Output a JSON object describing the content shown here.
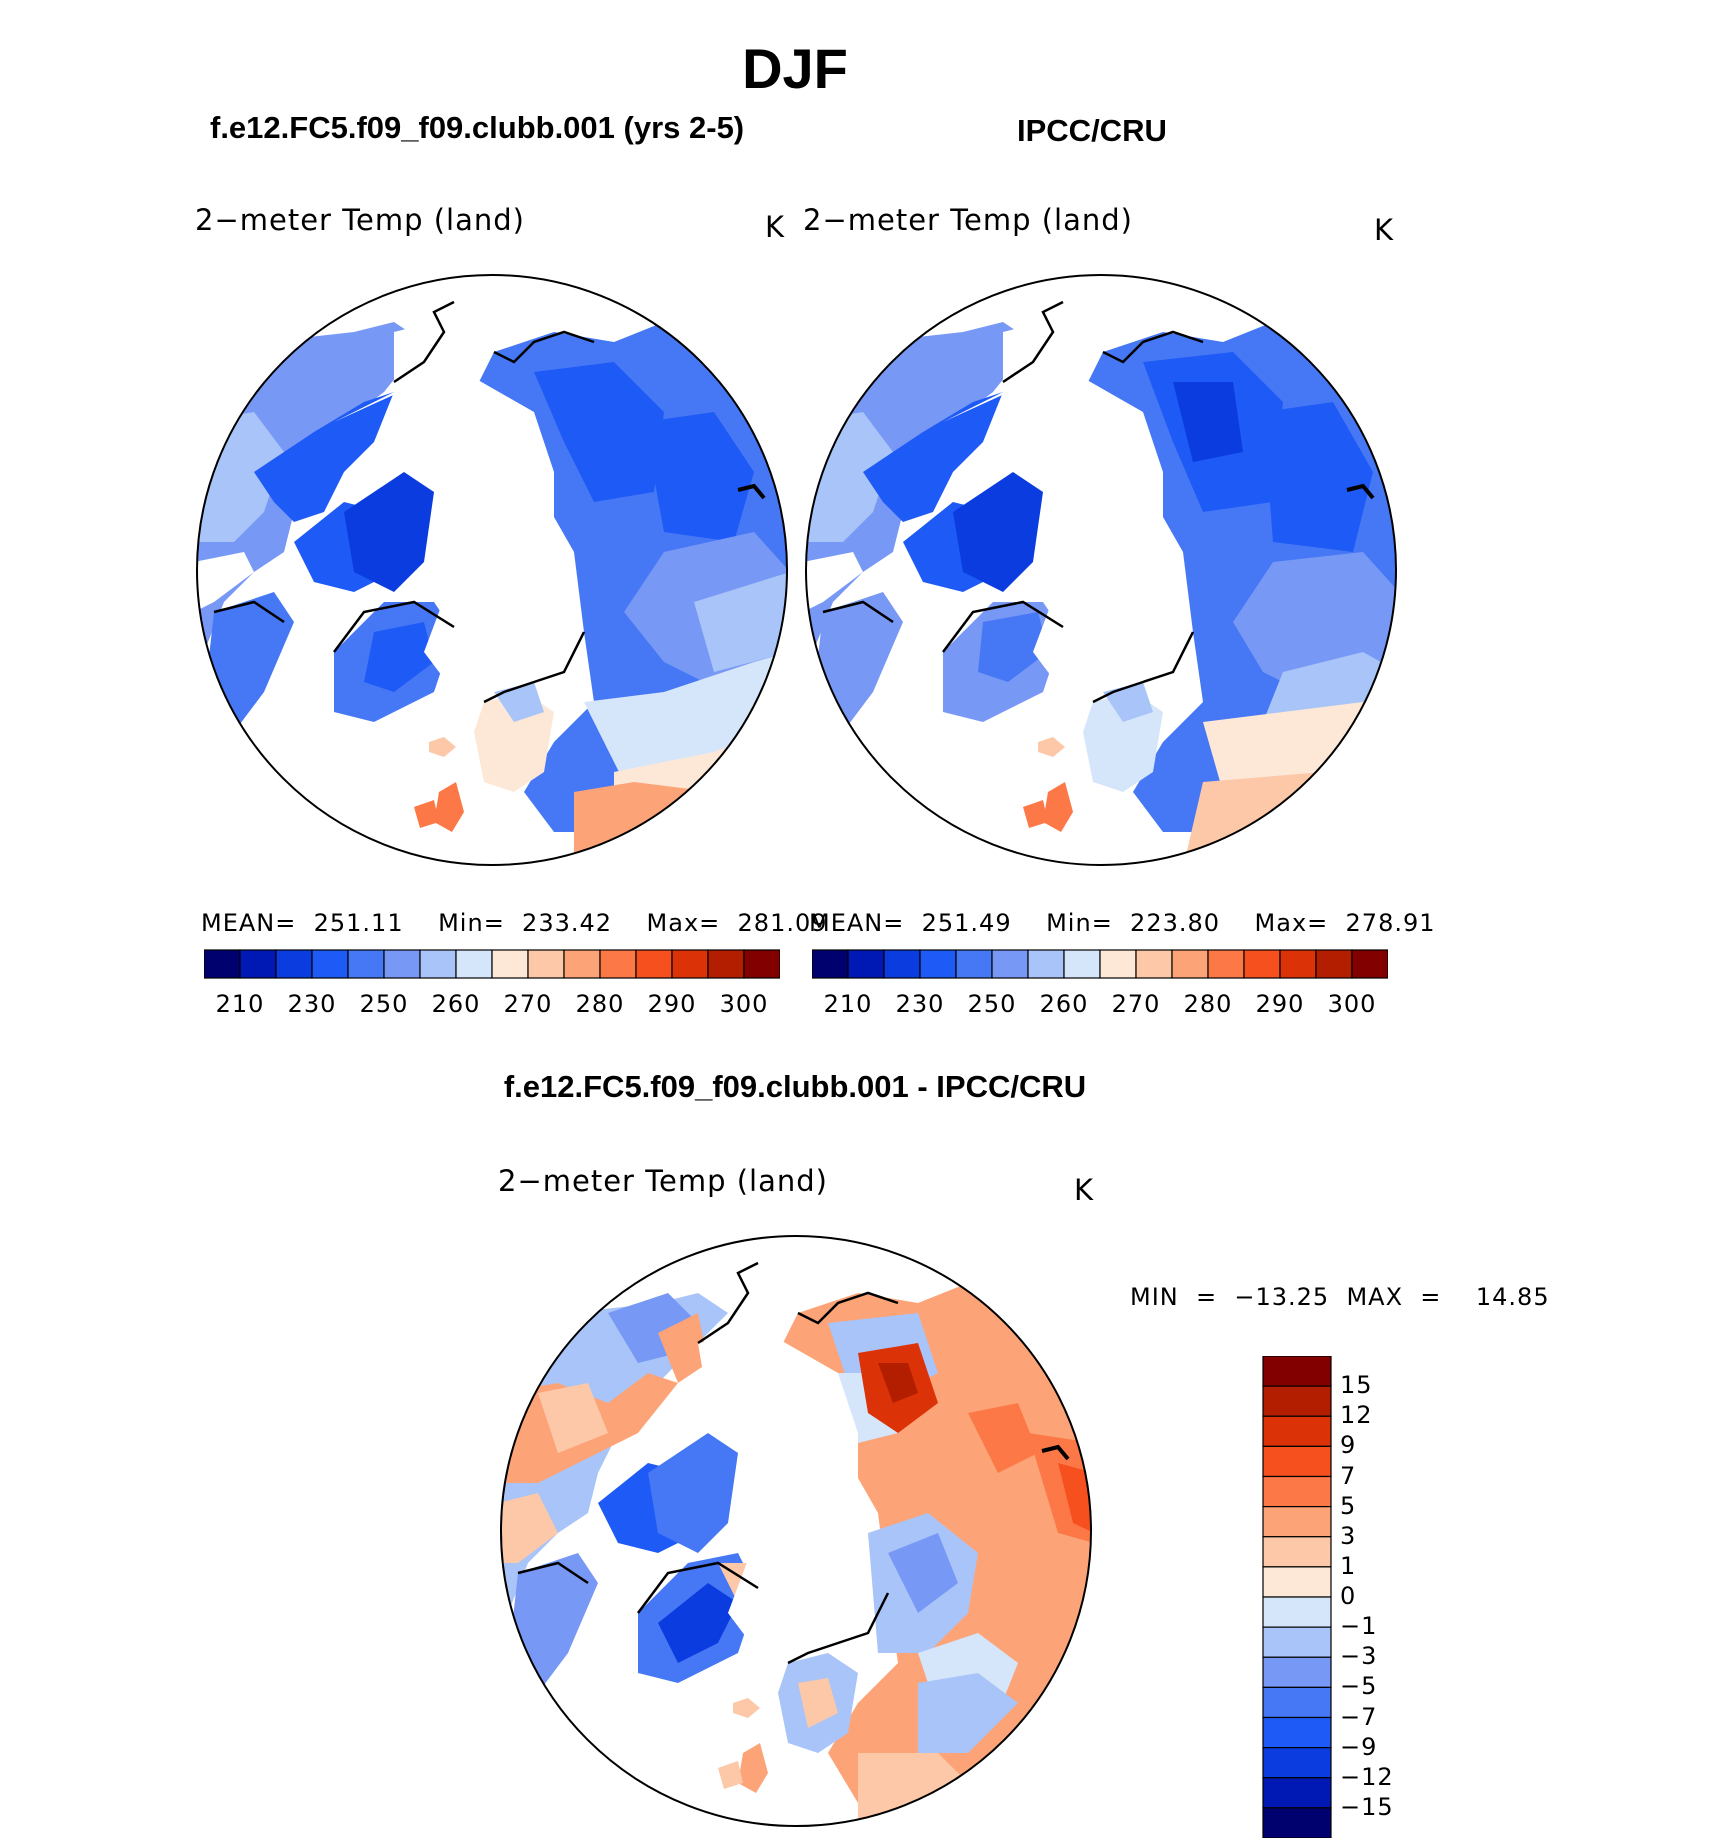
{
  "title": "DJF",
  "left_case": "f.e12.FC5.f09_f09.clubb.001 (yrs 2-5)",
  "right_case": "IPCC/CRU",
  "diff_title": "f.e12.FC5.f09_f09.clubb.001 - IPCC/CRU",
  "panels": {
    "model": {
      "variable": "2−meter Temp (land)",
      "units": "K",
      "stats": "MEAN=  251.11    Min=  233.42    Max=  281.09"
    },
    "obs": {
      "variable": "2−meter Temp (land)",
      "units": "K",
      "stats": "MEAN=  251.49    Min=  223.80    Max=  278.91"
    },
    "diff": {
      "variable": "2−meter Temp (land)",
      "units": "K",
      "stats": "MIN  =  −13.25  MAX  =    14.85"
    }
  },
  "colorbar_abs": {
    "colors": [
      "#00006e",
      "#0018b4",
      "#0a3ce0",
      "#1e5af5",
      "#4678f5",
      "#7898f5",
      "#a8c4f8",
      "#d6e6fa",
      "#fde8d8",
      "#fcc8a8",
      "#fca478",
      "#fc7846",
      "#f5501e",
      "#dc3208",
      "#b41e00",
      "#820000"
    ],
    "labels": [
      "210",
      "230",
      "250",
      "260",
      "270",
      "280",
      "290",
      "300"
    ]
  },
  "colorbar_diff": {
    "colors": [
      "#820000",
      "#b41e00",
      "#dc3208",
      "#f5501e",
      "#fc7846",
      "#fca478",
      "#fcc8a8",
      "#fde8d8",
      "#d6e6fa",
      "#a8c4f8",
      "#7898f5",
      "#4678f5",
      "#1e5af5",
      "#0a3ce0",
      "#0018b4",
      "#00006e"
    ],
    "labels": [
      "15",
      "12",
      "9",
      "7",
      "5",
      "3",
      "1",
      "0",
      "−1",
      "−3",
      "−5",
      "−7",
      "−9",
      "−12",
      "−15"
    ]
  }
}
